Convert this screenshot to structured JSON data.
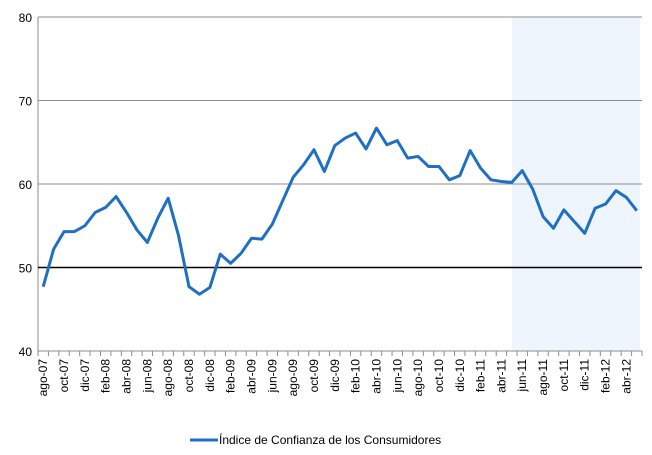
{
  "chart_data": {
    "type": "line",
    "categories": [
      "ago-07",
      null,
      "oct-07",
      null,
      "dic-07",
      null,
      "feb-08",
      null,
      "abr-08",
      null,
      "jun-08",
      null,
      "ago-08",
      null,
      "oct-08",
      null,
      "dic-08",
      null,
      "feb-09",
      null,
      "abr-09",
      null,
      "jun-09",
      null,
      "ago-09",
      null,
      "oct-09",
      null,
      "dic-09",
      null,
      "feb-10",
      null,
      "abr-10",
      null,
      "jun-10",
      null,
      "ago-10",
      null,
      "oct-10",
      null,
      "dic-10",
      null,
      "feb-11",
      null,
      "abr-11",
      null,
      "jun-11",
      null,
      "ago-11",
      null,
      "oct-11",
      null,
      "dic-11",
      null,
      "feb-12",
      null,
      "abr-12",
      null
    ],
    "series": [
      {
        "name": "Índice de Confianza de los Consumidores",
        "color": "#1f6fc5",
        "values": [
          47.7,
          52.2,
          54.3,
          54.3,
          55.0,
          56.6,
          57.2,
          58.5,
          56.6,
          54.5,
          53.0,
          55.9,
          58.3,
          53.8,
          47.7,
          46.8,
          47.6,
          51.6,
          50.5,
          51.7,
          53.5,
          53.4,
          55.2,
          58.0,
          60.8,
          62.3,
          64.1,
          61.5,
          64.6,
          65.5,
          66.1,
          64.2,
          66.7,
          64.7,
          65.2,
          63.1,
          63.3,
          62.1,
          62.1,
          60.5,
          61.0,
          64.0,
          61.9,
          60.5,
          60.3,
          60.2,
          61.6,
          59.4,
          56.1,
          54.7,
          56.9,
          55.5,
          54.1,
          57.1,
          57.6,
          59.2,
          58.4,
          56.8
        ]
      }
    ],
    "ylim": [
      40,
      80
    ],
    "yticks": [
      40,
      50,
      60,
      70,
      80
    ],
    "grid": true,
    "reference_line": 50,
    "shaded_from_index": 45,
    "shade_color": "#eef5fc",
    "legend": "bottom"
  }
}
